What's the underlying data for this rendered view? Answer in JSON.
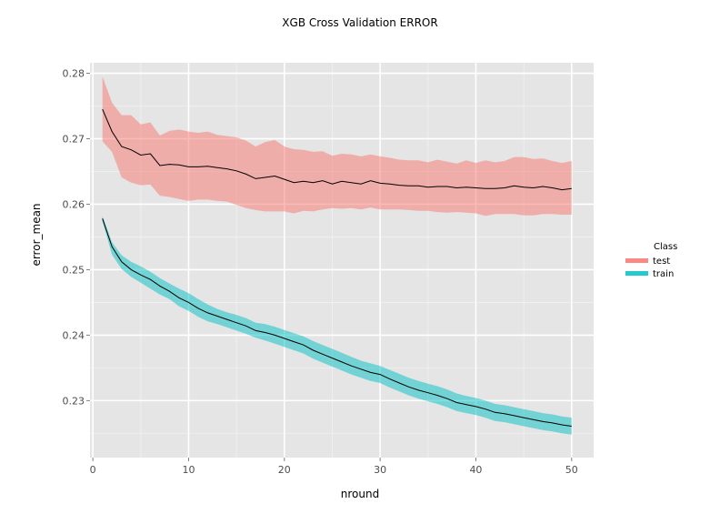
{
  "chart_data": {
    "type": "line",
    "title": "XGB Cross Validation ERROR",
    "xlabel": "nround",
    "ylabel": "error_mean",
    "xlim": [
      -0.3,
      52.3
    ],
    "ylim": [
      0.2213,
      0.2816
    ],
    "x_ticks": [
      0,
      10,
      20,
      30,
      40,
      50
    ],
    "y_ticks": [
      0.23,
      0.24,
      0.25,
      0.26,
      0.27,
      0.28
    ],
    "x_tick_labels": [
      "0",
      "10",
      "20",
      "30",
      "40",
      "50"
    ],
    "y_tick_labels": [
      "0.23",
      "0.24",
      "0.25",
      "0.26",
      "0.27",
      "0.28"
    ],
    "grid": true,
    "legend": {
      "title": "Class",
      "position": "right"
    },
    "x": [
      1,
      2,
      3,
      4,
      5,
      6,
      7,
      8,
      9,
      10,
      11,
      12,
      13,
      14,
      15,
      16,
      17,
      18,
      19,
      20,
      21,
      22,
      23,
      24,
      25,
      26,
      27,
      28,
      29,
      30,
      31,
      32,
      33,
      34,
      35,
      36,
      37,
      38,
      39,
      40,
      41,
      42,
      43,
      44,
      45,
      46,
      47,
      48,
      49,
      50
    ],
    "series": [
      {
        "name": "test",
        "color": "#f8766d",
        "mean": [
          0.2745,
          0.2711,
          0.2688,
          0.2683,
          0.2675,
          0.2677,
          0.2659,
          0.2661,
          0.266,
          0.2657,
          0.2657,
          0.2658,
          0.2656,
          0.2654,
          0.2651,
          0.2646,
          0.2639,
          0.2641,
          0.2643,
          0.2638,
          0.2633,
          0.2635,
          0.2633,
          0.2636,
          0.2631,
          0.2635,
          0.2633,
          0.2631,
          0.2636,
          0.2632,
          0.2631,
          0.2629,
          0.2628,
          0.2628,
          0.2626,
          0.2627,
          0.2627,
          0.2625,
          0.2626,
          0.2625,
          0.2624,
          0.2624,
          0.2625,
          0.2628,
          0.2626,
          0.2625,
          0.2627,
          0.2625,
          0.2622,
          0.2624
        ],
        "upper": [
          0.2795,
          0.2755,
          0.2736,
          0.2736,
          0.2722,
          0.2725,
          0.2705,
          0.2712,
          0.2714,
          0.2711,
          0.2709,
          0.2711,
          0.2706,
          0.2704,
          0.2702,
          0.2697,
          0.2688,
          0.2695,
          0.2698,
          0.2688,
          0.2684,
          0.2683,
          0.268,
          0.2681,
          0.2674,
          0.2677,
          0.2676,
          0.2673,
          0.2676,
          0.2673,
          0.2671,
          0.2668,
          0.2667,
          0.2667,
          0.2664,
          0.2668,
          0.2665,
          0.2662,
          0.2667,
          0.2663,
          0.2667,
          0.2664,
          0.2666,
          0.2672,
          0.2672,
          0.2669,
          0.267,
          0.2666,
          0.2663,
          0.2666
        ],
        "lower": [
          0.2696,
          0.268,
          0.2641,
          0.2633,
          0.2629,
          0.263,
          0.2613,
          0.2611,
          0.2608,
          0.2605,
          0.2607,
          0.2607,
          0.2605,
          0.2604,
          0.2599,
          0.2594,
          0.2591,
          0.2589,
          0.2589,
          0.2589,
          0.2586,
          0.259,
          0.2589,
          0.2592,
          0.2594,
          0.2593,
          0.2594,
          0.2592,
          0.2595,
          0.2592,
          0.2592,
          0.2592,
          0.2591,
          0.259,
          0.259,
          0.2588,
          0.2587,
          0.2588,
          0.2587,
          0.2586,
          0.2582,
          0.2585,
          0.2585,
          0.2585,
          0.2583,
          0.2583,
          0.2585,
          0.2585,
          0.2584,
          0.2584
        ]
      },
      {
        "name": "train",
        "color": "#00bfc4",
        "mean": [
          0.2578,
          0.2535,
          0.2512,
          0.25,
          0.2492,
          0.2485,
          0.2475,
          0.2467,
          0.2457,
          0.245,
          0.2441,
          0.2434,
          0.2429,
          0.2424,
          0.2419,
          0.2414,
          0.2407,
          0.2404,
          0.24,
          0.2395,
          0.239,
          0.2385,
          0.2377,
          0.2371,
          0.2365,
          0.2359,
          0.2353,
          0.2348,
          0.2343,
          0.234,
          0.2333,
          0.2327,
          0.2321,
          0.2316,
          0.2312,
          0.2308,
          0.2303,
          0.2297,
          0.2294,
          0.2291,
          0.2287,
          0.2282,
          0.228,
          0.2277,
          0.2274,
          0.2271,
          0.2268,
          0.2266,
          0.2263,
          0.2261
        ],
        "upper": [
          0.2582,
          0.2542,
          0.2522,
          0.2512,
          0.2505,
          0.2497,
          0.2487,
          0.2479,
          0.2471,
          0.2464,
          0.2455,
          0.2447,
          0.244,
          0.2435,
          0.2431,
          0.2426,
          0.2419,
          0.2417,
          0.2413,
          0.2408,
          0.2403,
          0.2398,
          0.2391,
          0.2385,
          0.2379,
          0.2373,
          0.2367,
          0.2361,
          0.2357,
          0.2353,
          0.2347,
          0.2341,
          0.2335,
          0.233,
          0.2326,
          0.2322,
          0.2317,
          0.2311,
          0.2307,
          0.2304,
          0.23,
          0.2295,
          0.2293,
          0.229,
          0.2287,
          0.2284,
          0.2281,
          0.2279,
          0.2276,
          0.2274
        ],
        "lower": [
          0.2574,
          0.2523,
          0.2501,
          0.2489,
          0.248,
          0.2471,
          0.2462,
          0.2455,
          0.2444,
          0.2437,
          0.2428,
          0.2421,
          0.2417,
          0.2412,
          0.2407,
          0.2402,
          0.2396,
          0.2392,
          0.2387,
          0.2382,
          0.2377,
          0.2372,
          0.2364,
          0.2358,
          0.2352,
          0.2346,
          0.234,
          0.2335,
          0.233,
          0.2327,
          0.232,
          0.2314,
          0.2308,
          0.2303,
          0.2299,
          0.2295,
          0.229,
          0.2284,
          0.2281,
          0.2278,
          0.2274,
          0.2269,
          0.2267,
          0.2264,
          0.2261,
          0.2258,
          0.2255,
          0.2253,
          0.225,
          0.2248
        ]
      }
    ],
    "mean_line_color": "#000000"
  }
}
